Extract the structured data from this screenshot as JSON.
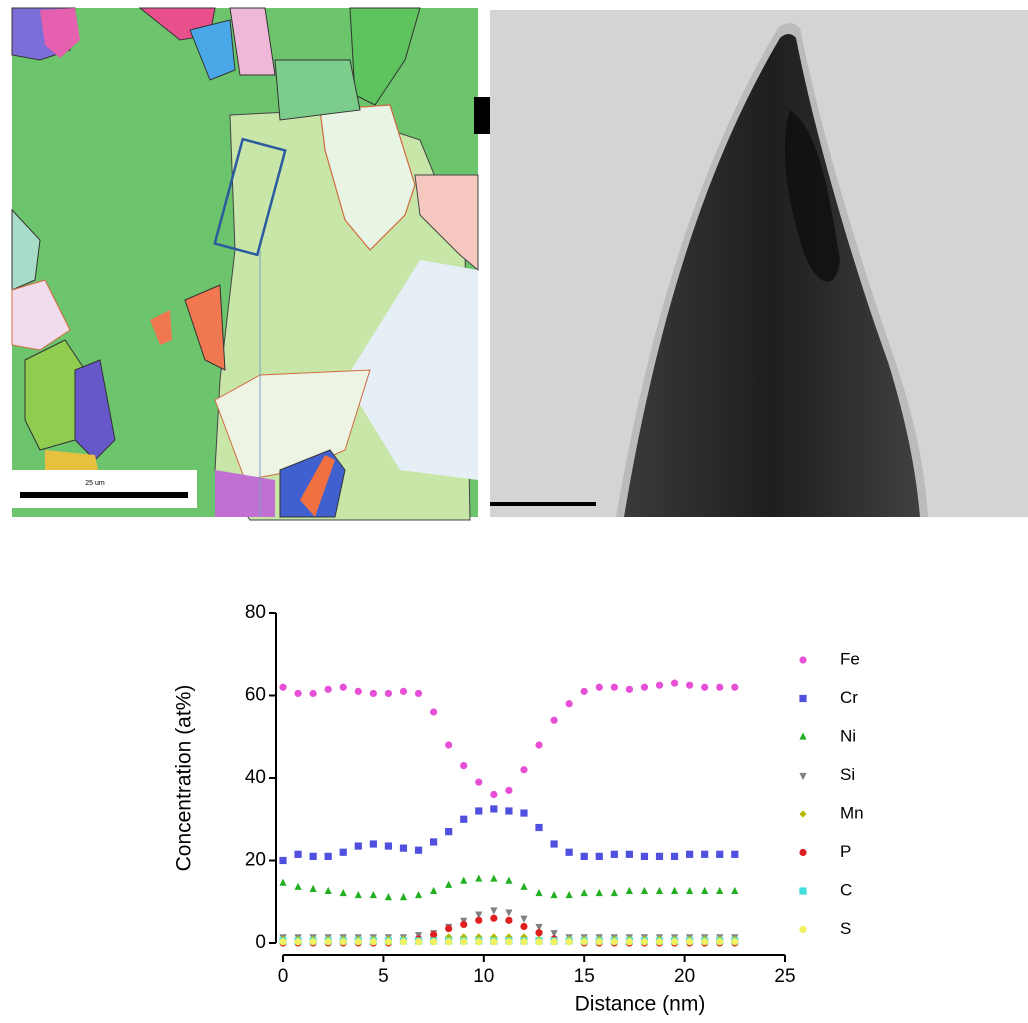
{
  "figure": {
    "ebsd_scale_label": "25 um"
  },
  "chart_data": {
    "type": "scatter",
    "x_label": "Distance (nm)",
    "y_label": "Concentration (at%)",
    "xlim": [
      0,
      25
    ],
    "xticks": [
      0,
      5,
      10,
      15,
      20,
      25
    ],
    "ylim": [
      0,
      80
    ],
    "yticks": [
      0,
      20,
      40,
      60,
      80
    ],
    "legend": "right",
    "x": [
      0,
      0.75,
      1.5,
      2.25,
      3,
      3.75,
      4.5,
      5.25,
      6,
      6.75,
      7.5,
      8.25,
      9,
      9.75,
      10.5,
      11.25,
      12,
      12.75,
      13.5,
      14.25,
      15,
      15.75,
      16.5,
      17.25,
      18,
      18.75,
      19.5,
      20.25,
      21,
      21.75,
      22.5
    ],
    "series": [
      {
        "name": "Fe",
        "color": "#e64fd6",
        "marker": "circle",
        "values": [
          62,
          60.5,
          60.5,
          61.5,
          62,
          61,
          60.5,
          60.5,
          61,
          60.5,
          56,
          48,
          43,
          39,
          36,
          37,
          42,
          48,
          54,
          58,
          61,
          62,
          62,
          61.5,
          62,
          62.5,
          63,
          62.5,
          62,
          62,
          62
        ]
      },
      {
        "name": "Cr",
        "color": "#4f4fe0",
        "marker": "square",
        "values": [
          20,
          21.5,
          21,
          21,
          22,
          23.5,
          24,
          23.5,
          23,
          22.5,
          24.5,
          27,
          30,
          32,
          32.5,
          32,
          31.5,
          28,
          24,
          22,
          21,
          21,
          21.5,
          21.5,
          21,
          21,
          21,
          21.5,
          21.5,
          21.5,
          21.5
        ]
      },
      {
        "name": "Ni",
        "color": "#22b022",
        "marker": "triangle-up",
        "values": [
          14.5,
          13.5,
          13,
          12.5,
          12,
          11.5,
          11.5,
          11,
          11,
          11.5,
          12.5,
          14,
          15,
          15.5,
          15.5,
          15,
          13.5,
          12,
          11.5,
          11.5,
          12,
          12,
          12,
          12.5,
          12.5,
          12.5,
          12.5,
          12.5,
          12.5,
          12.5,
          12.5
        ]
      },
      {
        "name": "Si",
        "color": "#808080",
        "marker": "triangle-down",
        "values": [
          1.5,
          1.5,
          1.5,
          1.5,
          1.5,
          1.5,
          1.5,
          1.5,
          1.5,
          2,
          2.5,
          4,
          5.5,
          7,
          8,
          7.5,
          6,
          4,
          2.5,
          1.5,
          1.5,
          1.5,
          1.5,
          1.5,
          1.5,
          1.5,
          1.5,
          1.5,
          1.5,
          1.5,
          1.5
        ]
      },
      {
        "name": "Mn",
        "color": "#b8b800",
        "marker": "diamond",
        "values": [
          1,
          1,
          1,
          1,
          1,
          1,
          1,
          1,
          1,
          1,
          1,
          1.5,
          1.5,
          1.5,
          1.5,
          1.5,
          1.5,
          1,
          1,
          1,
          1,
          1,
          1,
          1,
          1,
          1,
          1,
          1,
          1,
          1,
          1
        ]
      },
      {
        "name": "P",
        "color": "#e02020",
        "marker": "circle",
        "values": [
          0,
          0,
          0,
          0,
          0,
          0,
          0,
          0,
          0.5,
          1,
          2,
          3.5,
          4.5,
          5.5,
          6,
          5.5,
          4,
          2.5,
          1,
          0.5,
          0,
          0,
          0,
          0,
          0,
          0,
          0,
          0,
          0,
          0,
          0
        ]
      },
      {
        "name": "C",
        "color": "#40e0e0",
        "marker": "square",
        "values": [
          0.5,
          0.5,
          0.5,
          0.5,
          0.5,
          0.5,
          0.5,
          0.5,
          0.5,
          0.5,
          0.5,
          0.5,
          0.5,
          0.5,
          0.5,
          0.5,
          0.5,
          0.5,
          0.5,
          0.5,
          0.5,
          0.5,
          0.5,
          0.5,
          0.5,
          0.5,
          0.5,
          0.5,
          0.5,
          0.5,
          0.5
        ]
      },
      {
        "name": "S",
        "color": "#f0f060",
        "marker": "circle",
        "values": [
          0.3,
          0.3,
          0.3,
          0.3,
          0.3,
          0.3,
          0.3,
          0.3,
          0.3,
          0.3,
          0.3,
          0.3,
          0.3,
          0.3,
          0.3,
          0.3,
          0.3,
          0.3,
          0.3,
          0.3,
          0.3,
          0.3,
          0.3,
          0.3,
          0.3,
          0.3,
          0.3,
          0.3,
          0.3,
          0.3,
          0.3
        ]
      }
    ]
  }
}
